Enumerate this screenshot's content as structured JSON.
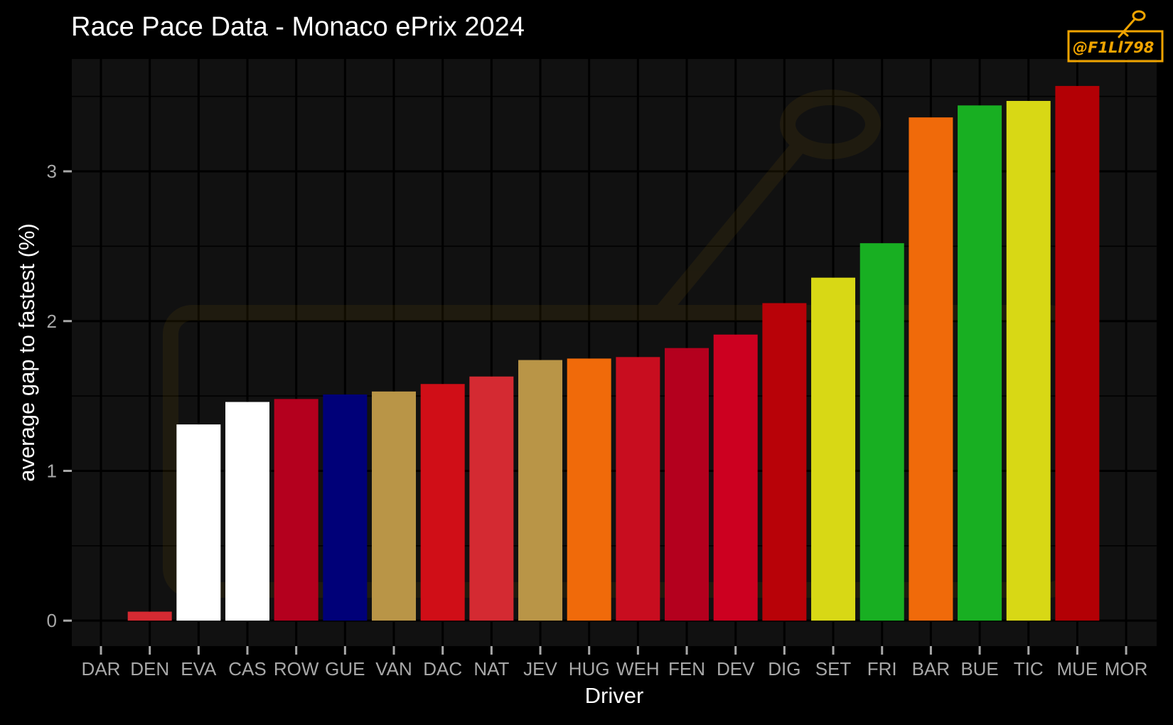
{
  "chart_data": {
    "type": "bar",
    "title": "Race Pace Data - Monaco ePrix 2024",
    "xlabel": "Driver",
    "ylabel": "average gap to fastest (%)",
    "ylim": [
      -0.17,
      3.75
    ],
    "y_ticks": [
      0,
      1,
      2,
      3
    ],
    "grid": true,
    "legend": "none",
    "categories": [
      "DAR",
      "DEN",
      "EVA",
      "CAS",
      "ROW",
      "GUE",
      "VAN",
      "DAC",
      "NAT",
      "JEV",
      "HUG",
      "WEH",
      "FEN",
      "DEV",
      "DIG",
      "SET",
      "FRI",
      "BAR",
      "BUE",
      "TIC",
      "MUE",
      "MOR"
    ],
    "values": [
      0,
      0.06,
      1.31,
      1.46,
      1.48,
      1.51,
      1.53,
      1.58,
      1.63,
      1.74,
      1.75,
      1.76,
      1.82,
      1.91,
      2.12,
      2.29,
      2.52,
      3.36,
      3.44,
      3.47,
      3.57,
      null
    ],
    "colors": [
      "#d42a32",
      "#d42a32",
      "#ffffff",
      "#ffffff",
      "#b4001e",
      "#000078",
      "#b99547",
      "#d00e17",
      "#d42a32",
      "#b99547",
      "#f06a0a",
      "#c80d1f",
      "#b4001e",
      "#cc0020",
      "#b80208",
      "#d8d815",
      "#18af22",
      "#f06a0a",
      "#18af22",
      "#d8d815",
      "#b30005",
      "#d42a32"
    ]
  },
  "watermark": {
    "text": "@F1Ll798",
    "color": "#f0a400"
  }
}
